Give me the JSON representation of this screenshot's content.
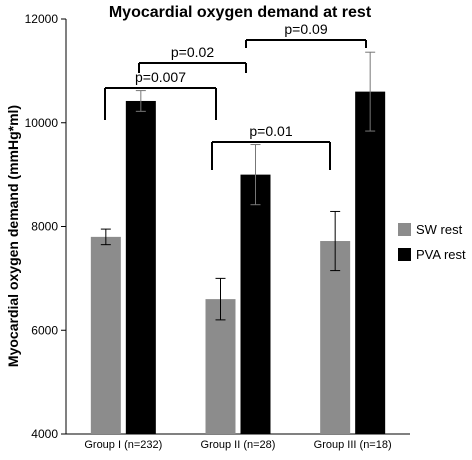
{
  "chart_data": {
    "type": "bar",
    "title": "Myocardial oxygen demand at rest",
    "xlabel": "",
    "ylabel": "Myocardial oxygen demand (mmHg*ml)",
    "ylim": [
      4000,
      12000
    ],
    "yticks": [
      4000,
      6000,
      8000,
      10000,
      12000
    ],
    "categories": [
      "Group I (n=232)",
      "Group II (n=28)",
      "Group III (n=18)"
    ],
    "series": [
      {
        "name": "SW rest",
        "color": "#8c8c8c",
        "values": [
          7800,
          6600,
          7720
        ],
        "errors": [
          150,
          400,
          570
        ]
      },
      {
        "name": "PVA rest",
        "color": "#000000",
        "values": [
          10420,
          9000,
          10600
        ],
        "errors": [
          200,
          580,
          760
        ]
      }
    ],
    "legend_position": "right",
    "grid": false,
    "annotations": [
      {
        "label": "p=0.02",
        "from": "Group I (n=232)",
        "to": "Group II (n=28)",
        "series": "SW rest"
      },
      {
        "label": "p=0.007",
        "from": "Group I (n=232)",
        "to": "Group II (n=28)",
        "series": "PVA rest"
      },
      {
        "label": "p=0.09",
        "from": "Group II (n=28)",
        "to": "Group III (n=18)",
        "series": "PVA rest"
      },
      {
        "label": "p=0.01",
        "from": "Group II (n=28)",
        "to": "Group III (n=18)",
        "series": "SW rest"
      }
    ]
  }
}
